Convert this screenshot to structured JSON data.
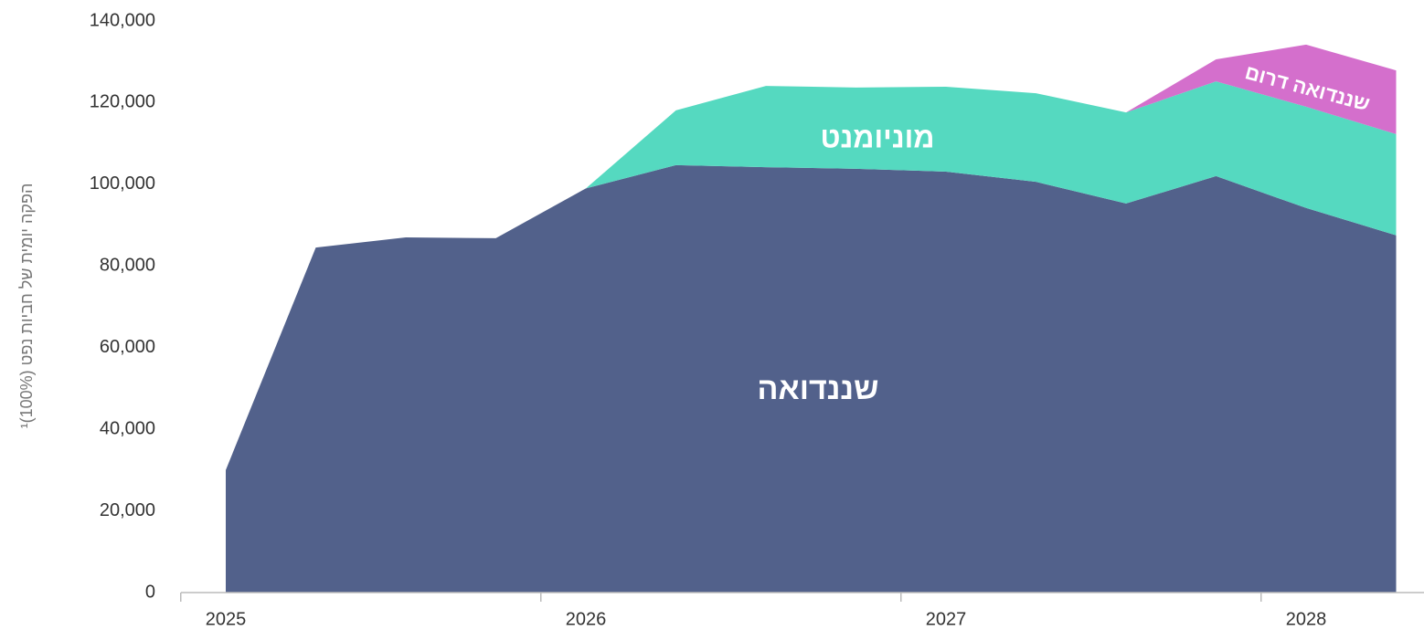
{
  "chart_data": {
    "type": "stacked_area",
    "y_axis_label": "הפקה יומית של חביות נפט (100%)¹",
    "categories": [
      "2025",
      null,
      null,
      null,
      "2026",
      null,
      null,
      null,
      "2027",
      null,
      null,
      null,
      "2028",
      null
    ],
    "series": [
      {
        "name": "שננדואה",
        "color": "#52618b",
        "values": [
          30000,
          84500,
          87000,
          86800,
          99000,
          104700,
          104200,
          103800,
          103100,
          100600,
          95300,
          102000,
          94200,
          87500
        ]
      },
      {
        "name": "מוניומנט",
        "color": "#55d9c0",
        "values": [
          null,
          null,
          null,
          null,
          0,
          13400,
          19900,
          19900,
          20800,
          21700,
          22300,
          23200,
          24800,
          24800
        ]
      },
      {
        "name": "שננדואה דרום",
        "color": "#d46fcc",
        "values": [
          null,
          null,
          null,
          null,
          null,
          null,
          null,
          null,
          null,
          null,
          0,
          5400,
          15200,
          15600
        ]
      }
    ],
    "ylim": [
      0,
      140000
    ],
    "yticks": [
      0,
      {
        "value": 20000,
        "label": "20,000"
      },
      {
        "value": 40000,
        "label": "40,000"
      },
      {
        "value": 60000,
        "label": "60,000"
      },
      {
        "value": 80000,
        "label": "80,000"
      },
      {
        "value": 100000,
        "label": "100,000"
      },
      {
        "value": 120000,
        "label": "120,000"
      },
      {
        "value": 140000,
        "label": "140,000"
      }
    ]
  }
}
